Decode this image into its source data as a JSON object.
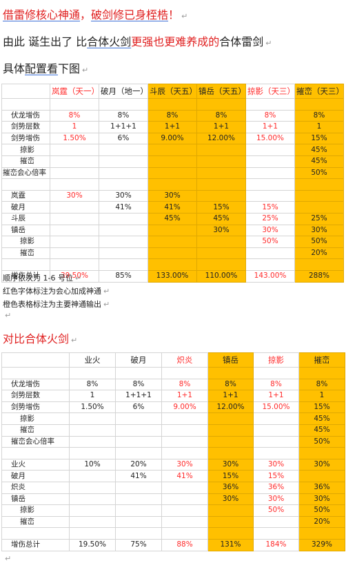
{
  "heading": {
    "part1": "借雷修核心神通",
    "sep": "，",
    "part2": "破剑修已身桎梏",
    "tail": "！"
  },
  "intro": {
    "a": "由此 诞生出了 比",
    "b": "合体火剑",
    "c": "更强也更难养成的",
    "d": "合体雷剑"
  },
  "config_line": {
    "a": "具体",
    "b": "配置看",
    "c": "下图"
  },
  "table1": {
    "headers": [
      "",
      "岚霆（天一）",
      "破月（地一）",
      "斗辰（天五）",
      "镇岳（天五）",
      "掠影（天三）",
      "摧峦（天三）"
    ],
    "rows": [
      [
        "",
        "",
        "",
        "",
        "",
        "",
        ""
      ],
      [
        "伏龙增伤",
        "8%",
        "8%",
        "8%",
        "8%",
        "8%",
        "8%"
      ],
      [
        "剑势层数",
        "1",
        "1+1+1",
        "1+1",
        "1+1",
        "1+1",
        "1"
      ],
      [
        "剑势增伤",
        "1.50%",
        "6%",
        "9.00%",
        "12.00%",
        "15.00%",
        "15%"
      ],
      [
        "掠影",
        "",
        "",
        "",
        "",
        "",
        "45%"
      ],
      [
        "摧峦",
        "",
        "",
        "",
        "",
        "",
        "45%"
      ],
      [
        "摧峦会心倍率",
        "",
        "",
        "",
        "",
        "",
        "50%"
      ],
      [
        "",
        "",
        "",
        "",
        "",
        "",
        ""
      ],
      [
        "岚霆",
        "30%",
        "30%",
        "30%",
        "",
        "",
        ""
      ],
      [
        "破月",
        "",
        "41%",
        "41%",
        "15%",
        "15%",
        ""
      ],
      [
        "斗辰",
        "",
        "",
        "45%",
        "45%",
        "25%",
        "25%"
      ],
      [
        "镇岳",
        "",
        "",
        "",
        "30%",
        "30%",
        "30%"
      ],
      [
        "掠影",
        "",
        "",
        "",
        "",
        "50%",
        "50%"
      ],
      [
        "摧峦",
        "",
        "",
        "",
        "",
        "",
        "20%"
      ],
      [
        "",
        "",
        "",
        "",
        "",
        "",
        ""
      ],
      [
        "增伤总计",
        "39.50%",
        "85%",
        "133.00%",
        "110.00%",
        "143.00%",
        "288%"
      ]
    ]
  },
  "notes": {
    "n1": "顺序依次为 1-6 号位",
    "n2": "红色字体标注为会心加成神通",
    "n3": "橙色表格标注为主要神通输出"
  },
  "compare_title": "对比合体火剑",
  "table2": {
    "headers": [
      "",
      "业火",
      "破月",
      "炽炎",
      "镇岳",
      "掠影",
      "摧峦"
    ],
    "rows": [
      [
        "",
        "",
        "",
        "",
        "",
        "",
        ""
      ],
      [
        "伏龙增伤",
        "8%",
        "8%",
        "8%",
        "8%",
        "8%",
        "8%"
      ],
      [
        "剑势层数",
        "1",
        "1+1+1",
        "1+1",
        "1+1",
        "1+1",
        "1"
      ],
      [
        "剑势增伤",
        "1.50%",
        "6%",
        "9.00%",
        "12.00%",
        "15.00%",
        "15%"
      ],
      [
        "掠影",
        "",
        "",
        "",
        "",
        "",
        "45%"
      ],
      [
        "摧峦",
        "",
        "",
        "",
        "",
        "",
        "45%"
      ],
      [
        "摧峦会心倍率",
        "",
        "",
        "",
        "",
        "",
        "50%"
      ],
      [
        "",
        "",
        "",
        "",
        "",
        "",
        ""
      ],
      [
        "业火",
        "10%",
        "20%",
        "30%",
        "30%",
        "30%",
        "30%"
      ],
      [
        "破月",
        "",
        "41%",
        "41%",
        "15%",
        "15%",
        ""
      ],
      [
        "炽炎",
        "",
        "",
        "",
        "36%",
        "36%",
        "36%"
      ],
      [
        "镇岳",
        "",
        "",
        "",
        "30%",
        "30%",
        "30%"
      ],
      [
        "掠影",
        "",
        "",
        "",
        "",
        "50%",
        "50%"
      ],
      [
        "摧峦",
        "",
        "",
        "",
        "",
        "",
        "20%"
      ],
      [
        "",
        "",
        "",
        "",
        "",
        "",
        ""
      ],
      [
        "增伤总计",
        "19.50%",
        "75%",
        "88%",
        "131%",
        "184%",
        "329%"
      ]
    ]
  },
  "colors": {
    "accent_red": "#e02020",
    "highlight": "#ffc000",
    "link_underline": "#3a6fd8"
  }
}
